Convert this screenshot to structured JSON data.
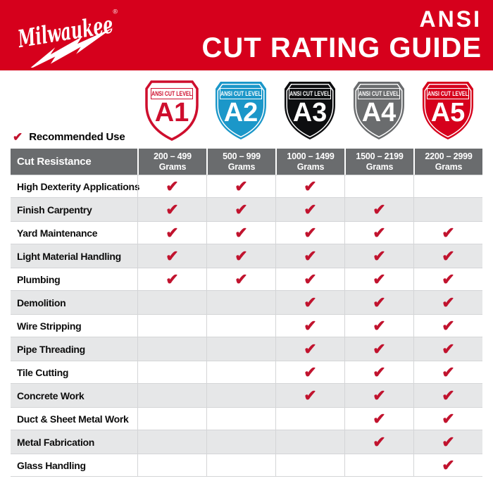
{
  "colors": {
    "brand_red": "#d6001c",
    "check_red": "#c1132e",
    "table_header_gray": "#6a6c6e",
    "row_alt_gray": "#e6e7e8",
    "shield_blue": "#1b97c9",
    "shield_black": "#0d0e10",
    "shield_gray": "#6a6c6e"
  },
  "header": {
    "brand": "Milwaukee",
    "trademark": "®",
    "title_line1": "ANSI",
    "title_line2": "CUT RATING GUIDE"
  },
  "legend": {
    "check": "✔",
    "label": "Recommended Use"
  },
  "shields": [
    {
      "level": "A1",
      "banner": "ANSI CUT LEVEL",
      "fill": "#ffffff",
      "accent": "#ce0e2d",
      "edge": "#ce0e2d",
      "edgew": "3.5",
      "inner": "transparent"
    },
    {
      "level": "A2",
      "banner": "ANSI CUT LEVEL",
      "fill": "#1b97c9",
      "accent": "#ffffff",
      "edge": "transparent",
      "edgew": "0",
      "inner": "#ffffff"
    },
    {
      "level": "A3",
      "banner": "ANSI CUT LEVEL",
      "fill": "#0d0e10",
      "accent": "#ffffff",
      "edge": "transparent",
      "edgew": "0",
      "inner": "#ffffff"
    },
    {
      "level": "A4",
      "banner": "ANSI CUT LEVEL",
      "fill": "#6a6c6e",
      "accent": "#ffffff",
      "edge": "transparent",
      "edgew": "0",
      "inner": "#ffffff"
    },
    {
      "level": "A5",
      "banner": "ANSI CUT LEVEL",
      "fill": "#d6001c",
      "accent": "#ffffff",
      "edge": "transparent",
      "edgew": "0",
      "inner": "#ffffff"
    }
  ],
  "table": {
    "corner_header": "Cut Resistance",
    "columns": [
      {
        "range": "200 – 499",
        "unit": "Grams"
      },
      {
        "range": "500 – 999",
        "unit": "Grams"
      },
      {
        "range": "1000 – 1499",
        "unit": "Grams"
      },
      {
        "range": "1500 – 2199",
        "unit": "Grams"
      },
      {
        "range": "2200 – 2999",
        "unit": "Grams"
      }
    ],
    "rows": [
      {
        "label": "High Dexterity Applications",
        "marks": [
          "✔",
          "✔",
          "✔",
          "",
          ""
        ]
      },
      {
        "label": "Finish Carpentry",
        "marks": [
          "✔",
          "✔",
          "✔",
          "✔",
          ""
        ]
      },
      {
        "label": "Yard Maintenance",
        "marks": [
          "✔",
          "✔",
          "✔",
          "✔",
          "✔"
        ]
      },
      {
        "label": "Light Material Handling",
        "marks": [
          "✔",
          "✔",
          "✔",
          "✔",
          "✔"
        ]
      },
      {
        "label": "Plumbing",
        "marks": [
          "✔",
          "✔",
          "✔",
          "✔",
          "✔"
        ]
      },
      {
        "label": "Demolition",
        "marks": [
          "",
          "",
          "✔",
          "✔",
          "✔"
        ]
      },
      {
        "label": "Wire Stripping",
        "marks": [
          "",
          "",
          "✔",
          "✔",
          "✔"
        ]
      },
      {
        "label": "Pipe Threading",
        "marks": [
          "",
          "",
          "✔",
          "✔",
          "✔"
        ]
      },
      {
        "label": "Tile Cutting",
        "marks": [
          "",
          "",
          "✔",
          "✔",
          "✔"
        ]
      },
      {
        "label": "Concrete Work",
        "marks": [
          "",
          "",
          "✔",
          "✔",
          "✔"
        ]
      },
      {
        "label": "Duct & Sheet Metal Work",
        "marks": [
          "",
          "",
          "",
          "✔",
          "✔"
        ]
      },
      {
        "label": "Metal Fabrication",
        "marks": [
          "",
          "",
          "",
          "✔",
          "✔"
        ]
      },
      {
        "label": "Glass Handling",
        "marks": [
          "",
          "",
          "",
          "",
          "✔"
        ]
      }
    ]
  }
}
